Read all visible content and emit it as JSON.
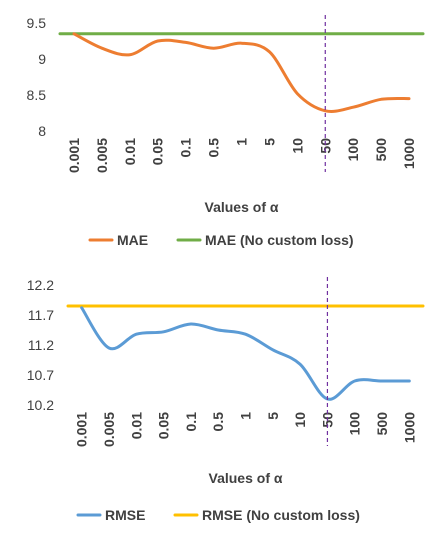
{
  "chart_data": [
    {
      "type": "line",
      "categories": [
        "0.001",
        "0.005",
        "0.01",
        "0.05",
        "0.1",
        "0.5",
        "1",
        "5",
        "10",
        "50",
        "100",
        "500",
        "1000"
      ],
      "xlabel": "Values of α",
      "ylim": [
        8,
        9.5
      ],
      "yticks": [
        "8",
        "8.5",
        "9",
        "9.5"
      ],
      "yticks_values": [
        8,
        8.5,
        9,
        9.5
      ],
      "series": [
        {
          "name": "MAE",
          "color": "#ED7D31",
          "values": [
            9.35,
            9.15,
            9.06,
            9.25,
            9.23,
            9.15,
            9.22,
            9.1,
            8.52,
            8.28,
            8.33,
            8.44,
            8.45
          ]
        },
        {
          "name": "MAE (No custom loss)",
          "color": "#70AD47",
          "values": [
            9.35,
            9.35,
            9.35,
            9.35,
            9.35,
            9.35,
            9.35,
            9.35,
            9.35,
            9.35,
            9.35,
            9.35,
            9.35
          ]
        }
      ],
      "marker_category": "50",
      "marker_color": "#7030A0",
      "legend_position": "bottom"
    },
    {
      "type": "line",
      "categories": [
        "0.001",
        "0.005",
        "0.01",
        "0.05",
        "0.1",
        "0.5",
        "1",
        "5",
        "10",
        "50",
        "100",
        "500",
        "1000"
      ],
      "xlabel": "Values of α",
      "ylim": [
        10.2,
        12.2
      ],
      "yticks": [
        "10.2",
        "10.7",
        "11.2",
        "11.7",
        "12.2"
      ],
      "yticks_values": [
        10.2,
        10.7,
        11.2,
        11.7,
        12.2
      ],
      "series": [
        {
          "name": "RMSE",
          "color": "#5B9BD5",
          "values": [
            11.82,
            11.15,
            11.38,
            11.42,
            11.55,
            11.45,
            11.38,
            11.12,
            10.88,
            10.3,
            10.6,
            10.6,
            10.6
          ]
        },
        {
          "name": "RMSE (No custom loss)",
          "color": "#FFC000",
          "values": [
            11.85,
            11.85,
            11.85,
            11.85,
            11.85,
            11.85,
            11.85,
            11.85,
            11.85,
            11.85,
            11.85,
            11.85,
            11.85
          ]
        }
      ],
      "marker_category": "50",
      "marker_color": "#7030A0",
      "legend_position": "bottom"
    }
  ]
}
